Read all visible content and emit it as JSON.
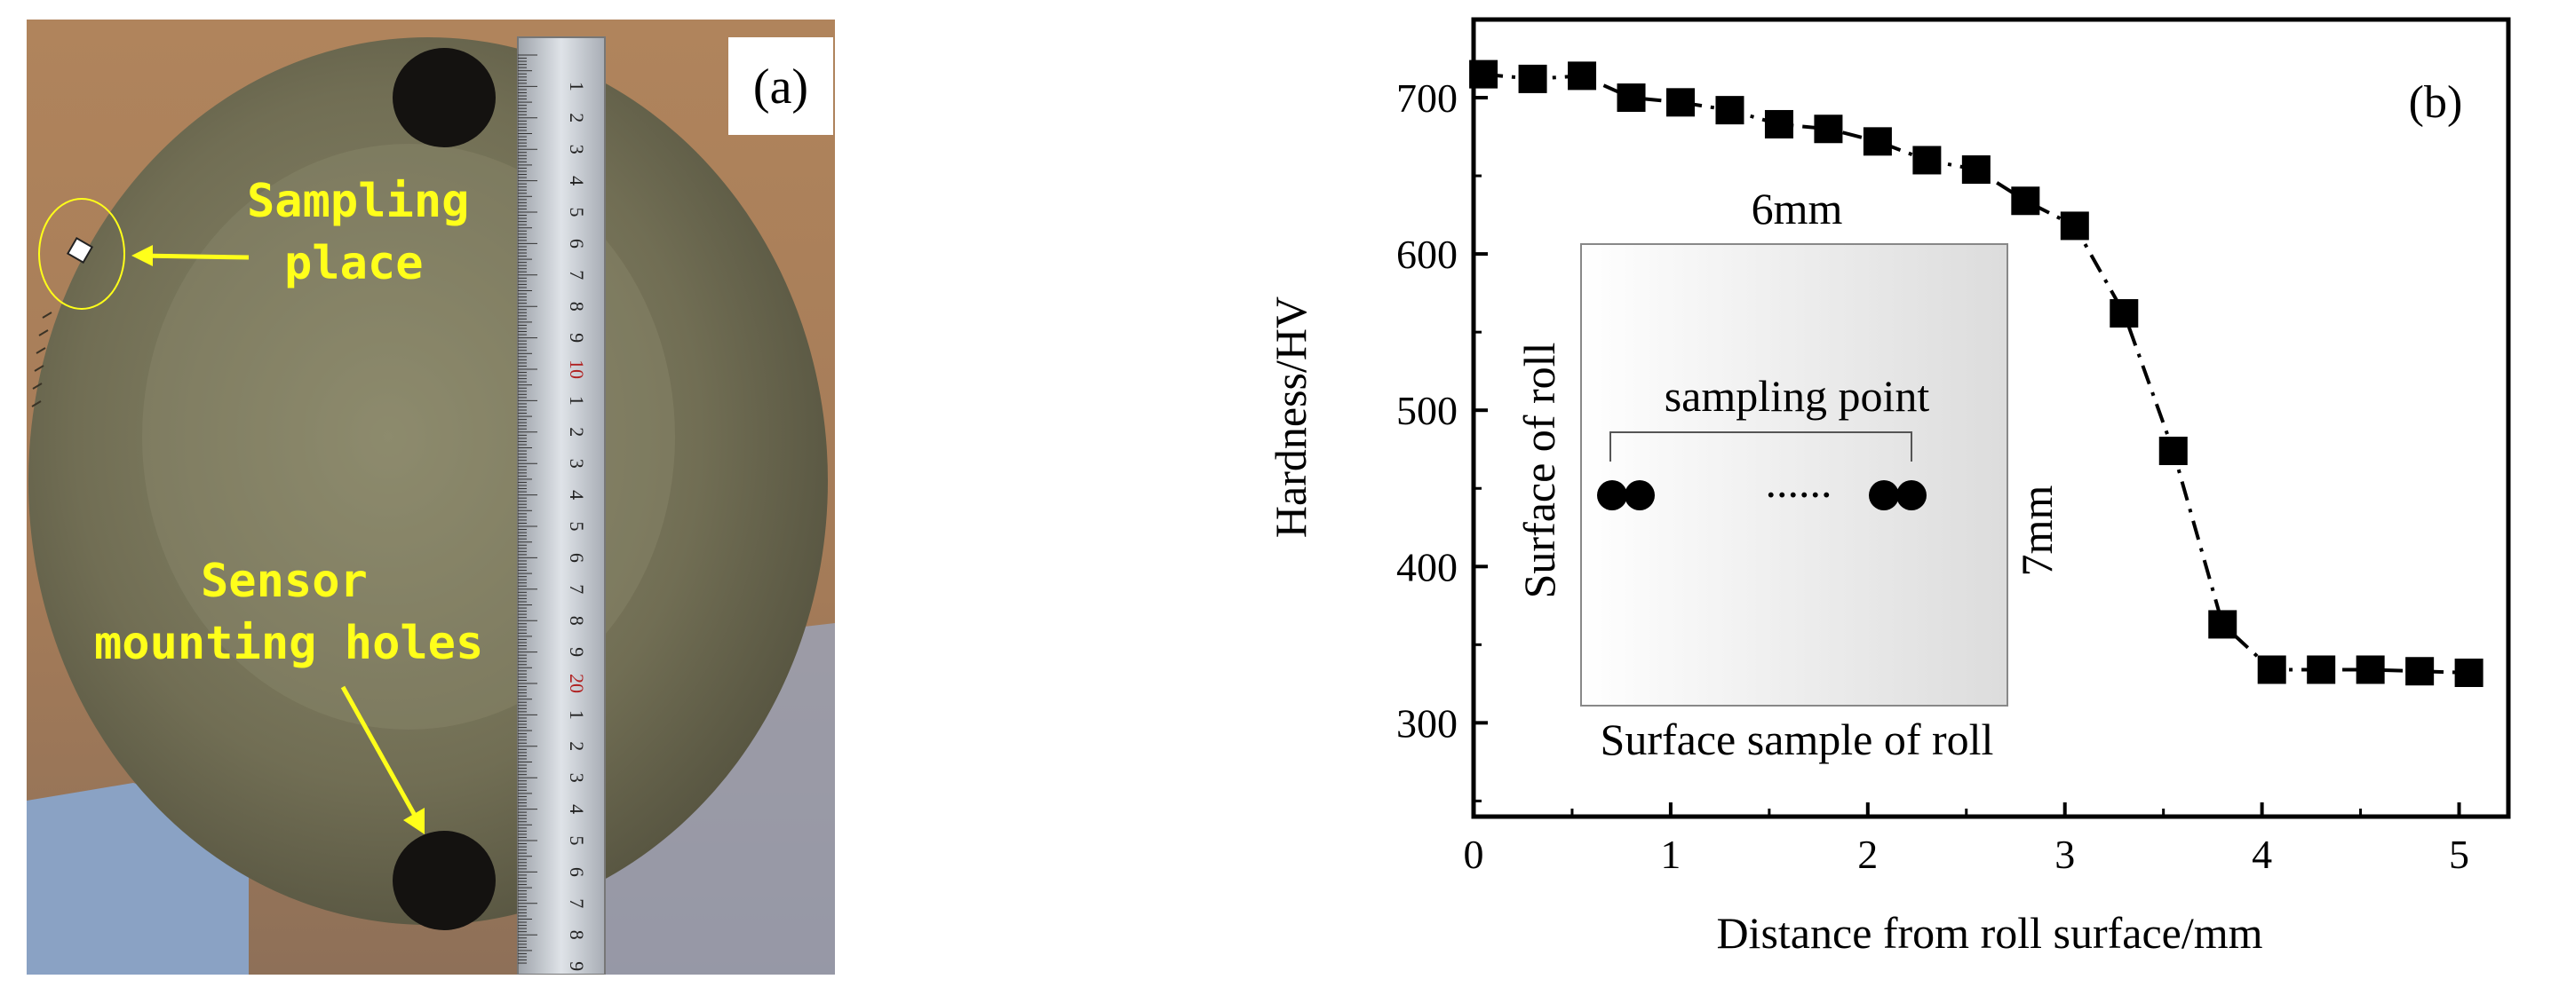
{
  "panel_a": {
    "label": "(a)",
    "annotations": {
      "sampling_line1": "Sampling",
      "sampling_line2": "place",
      "sensor_line1": "Sensor",
      "sensor_line2": "mounting holes"
    },
    "ruler_numbers": [
      "1",
      "2",
      "3",
      "4",
      "5",
      "6",
      "7",
      "8",
      "9",
      "10",
      "1",
      "2",
      "3",
      "4",
      "5",
      "6",
      "7",
      "8",
      "9",
      "20",
      "1",
      "2",
      "3",
      "4",
      "5",
      "6",
      "7",
      "8",
      "9"
    ]
  },
  "chart_data": {
    "type": "line",
    "panel_label": "(b)",
    "xlabel": "Distance from roll surface/mm",
    "ylabel": "Hardness/HV",
    "xlim": [
      0,
      5.25
    ],
    "ylim": [
      240,
      750
    ],
    "xticks": [
      0,
      1,
      2,
      3,
      4,
      5
    ],
    "yticks": [
      300,
      400,
      500,
      600,
      700
    ],
    "series": [
      {
        "name": "Hardness",
        "marker": "square",
        "line": "dash-dot",
        "x": [
          0.05,
          0.3,
          0.55,
          0.8,
          1.05,
          1.3,
          1.55,
          1.8,
          2.05,
          2.3,
          2.55,
          2.8,
          3.05,
          3.3,
          3.55,
          3.8,
          4.05,
          4.3,
          4.55,
          4.8,
          5.05
        ],
        "y": [
          715,
          712,
          714,
          700,
          697,
          692,
          683,
          680,
          672,
          660,
          654,
          634,
          618,
          562,
          474,
          363,
          334,
          334,
          334,
          333,
          332
        ]
      }
    ],
    "inset": {
      "top_label": "6mm",
      "right_label": "7mm",
      "left_label": "Surface of roll",
      "bottom_label": "Surface sample of roll",
      "bracket_label": "sampling point",
      "dots_label": "......"
    }
  },
  "colors": {
    "annotation": "#ffff1a",
    "marker": "#000000"
  }
}
